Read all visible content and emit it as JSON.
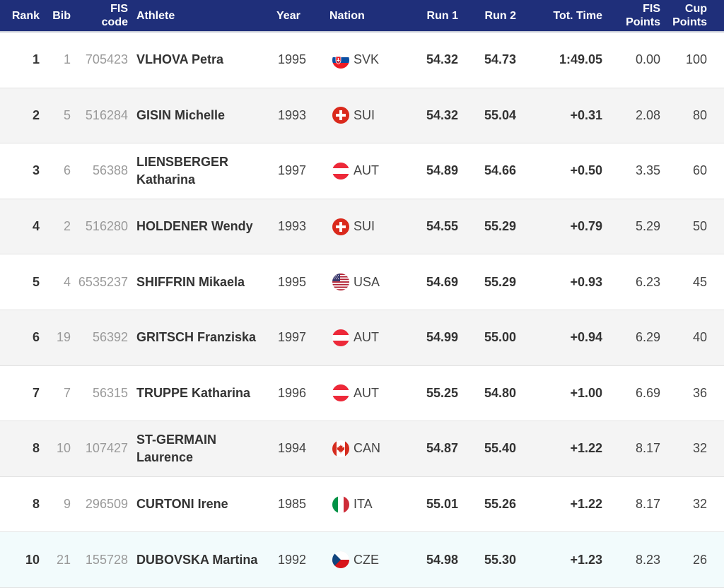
{
  "columns": {
    "rank": "Rank",
    "bib": "Bib",
    "fis_code_line1": "FIS",
    "fis_code_line2": "code",
    "athlete": "Athlete",
    "year": "Year",
    "nation": "Nation",
    "run1": "Run 1",
    "run2": "Run 2",
    "tot_time": "Tot. Time",
    "fis_points_line1": "FIS",
    "fis_points_line2": "Points",
    "cup_points_line1": "Cup",
    "cup_points_line2": "Points"
  },
  "rows": [
    {
      "rank": "1",
      "bib": "1",
      "fis_code": "705423",
      "athlete_line1": "VLHOVA Petra",
      "athlete_line2": "",
      "year": "1995",
      "nation": "SVK",
      "flag": "slovakia-flag-icon",
      "run1": "54.32",
      "run2": "54.73",
      "tot_time": "1:49.05",
      "fis_points": "0.00",
      "cup_points": "100"
    },
    {
      "rank": "2",
      "bib": "5",
      "fis_code": "516284",
      "athlete_line1": "GISIN Michelle",
      "athlete_line2": "",
      "year": "1993",
      "nation": "SUI",
      "flag": "switzerland-flag-icon",
      "run1": "54.32",
      "run2": "55.04",
      "tot_time": "+0.31",
      "fis_points": "2.08",
      "cup_points": "80"
    },
    {
      "rank": "3",
      "bib": "6",
      "fis_code": "56388",
      "athlete_line1": "LIENSBERGER",
      "athlete_line2": "Katharina",
      "year": "1997",
      "nation": "AUT",
      "flag": "austria-flag-icon",
      "run1": "54.89",
      "run2": "54.66",
      "tot_time": "+0.50",
      "fis_points": "3.35",
      "cup_points": "60"
    },
    {
      "rank": "4",
      "bib": "2",
      "fis_code": "516280",
      "athlete_line1": "HOLDENER Wendy",
      "athlete_line2": "",
      "year": "1993",
      "nation": "SUI",
      "flag": "switzerland-flag-icon",
      "run1": "54.55",
      "run2": "55.29",
      "tot_time": "+0.79",
      "fis_points": "5.29",
      "cup_points": "50"
    },
    {
      "rank": "5",
      "bib": "4",
      "fis_code": "6535237",
      "athlete_line1": "SHIFFRIN Mikaela",
      "athlete_line2": "",
      "year": "1995",
      "nation": "USA",
      "flag": "usa-flag-icon",
      "run1": "54.69",
      "run2": "55.29",
      "tot_time": "+0.93",
      "fis_points": "6.23",
      "cup_points": "45"
    },
    {
      "rank": "6",
      "bib": "19",
      "fis_code": "56392",
      "athlete_line1": "GRITSCH Franziska",
      "athlete_line2": "",
      "year": "1997",
      "nation": "AUT",
      "flag": "austria-flag-icon",
      "run1": "54.99",
      "run2": "55.00",
      "tot_time": "+0.94",
      "fis_points": "6.29",
      "cup_points": "40"
    },
    {
      "rank": "7",
      "bib": "7",
      "fis_code": "56315",
      "athlete_line1": "TRUPPE Katharina",
      "athlete_line2": "",
      "year": "1996",
      "nation": "AUT",
      "flag": "austria-flag-icon",
      "run1": "55.25",
      "run2": "54.80",
      "tot_time": "+1.00",
      "fis_points": "6.69",
      "cup_points": "36"
    },
    {
      "rank": "8",
      "bib": "10",
      "fis_code": "107427",
      "athlete_line1": "ST-GERMAIN",
      "athlete_line2": "Laurence",
      "year": "1994",
      "nation": "CAN",
      "flag": "canada-flag-icon",
      "run1": "54.87",
      "run2": "55.40",
      "tot_time": "+1.22",
      "fis_points": "8.17",
      "cup_points": "32"
    },
    {
      "rank": "8",
      "bib": "9",
      "fis_code": "296509",
      "athlete_line1": "CURTONI Irene",
      "athlete_line2": "",
      "year": "1985",
      "nation": "ITA",
      "flag": "italy-flag-icon",
      "run1": "55.01",
      "run2": "55.26",
      "tot_time": "+1.22",
      "fis_points": "8.17",
      "cup_points": "32"
    },
    {
      "rank": "10",
      "bib": "21",
      "fis_code": "155728",
      "athlete_line1": "DUBOVSKA Martina",
      "athlete_line2": "",
      "year": "1992",
      "nation": "CZE",
      "flag": "czech-flag-icon",
      "run1": "54.98",
      "run2": "55.30",
      "tot_time": "+1.23",
      "fis_points": "8.23",
      "cup_points": "26"
    }
  ],
  "colors": {
    "header_bg": "#1f2f7a",
    "row_alt_bg": "#f4f4f4",
    "row_highlight_bg": "#f2fbfc"
  }
}
